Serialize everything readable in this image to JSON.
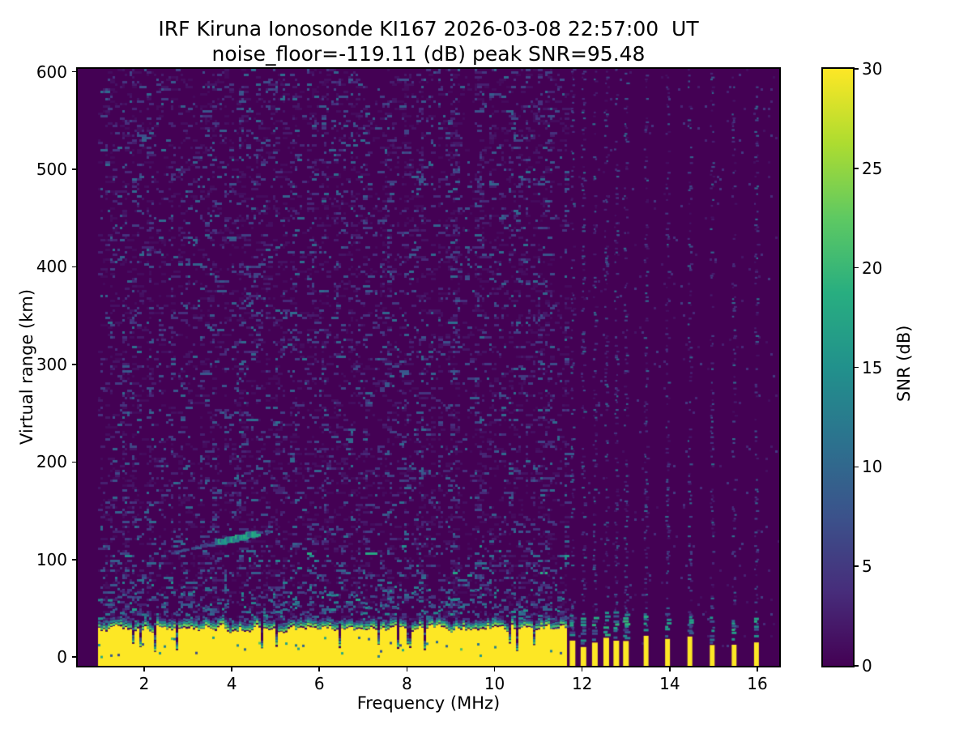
{
  "figure": {
    "title_line1": "IRF Kiruna Ionosonde KI167 2026-03-08 22:57:00  UT",
    "title_line2": "noise_floor=-119.11 (dB) peak SNR=95.48",
    "background": "#ffffff"
  },
  "chart_data": {
    "type": "heatmap",
    "title": "IRF Kiruna Ionosonde KI167 2026-03-08 22:57:00  UT\nnoise_floor=-119.11 (dB) peak SNR=95.48",
    "xlabel": "Frequency (MHz)",
    "ylabel": "Virtual range (km)",
    "colorbar_label": "SNR (dB)",
    "colormap": "viridis",
    "xlim": [
      0.483,
      16.5
    ],
    "ylim": [
      -9,
      603
    ],
    "clim": [
      0,
      30
    ],
    "xticks": [
      2,
      4,
      6,
      8,
      10,
      12,
      14,
      16
    ],
    "yticks": [
      0,
      100,
      200,
      300,
      400,
      500,
      600
    ],
    "colorbar_ticks": [
      0,
      5,
      10,
      15,
      20,
      25,
      30
    ],
    "noise_floor_db": -119.11,
    "peak_snr_db": 95.48,
    "grid": false,
    "viridis_stops": [
      "#440154",
      "#472d7b",
      "#3b528b",
      "#2c728e",
      "#21918c",
      "#28ae80",
      "#5ec962",
      "#addc30",
      "#fde725"
    ],
    "features": {
      "sweep_start_mhz": 0.95,
      "continuous_sweep_end_mhz": 11.65,
      "sparse_freqs_mhz": [
        11.78,
        12.03,
        12.29,
        12.55,
        12.78,
        13.0,
        13.46,
        13.95,
        14.46,
        14.97,
        15.47,
        15.98
      ],
      "ground_band": {
        "description": "saturated near-range band (SNR >= 30 dB, yellow) from sweep start to 11.65 MHz",
        "top_km_min": 23,
        "top_km_max": 36,
        "notch_probability": 0.055
      },
      "sparse_column_band": {
        "description": "isolated saturated columns at sparse sounding frequencies",
        "top_km_min": 10,
        "top_km_max": 22
      },
      "echo_trace": {
        "description": "sporadic-E / low ionospheric echo trace",
        "f_start_mhz": 2.68,
        "f_end_mhz": 4.85,
        "km_start": 107,
        "km_end": 129,
        "bright_segment_mhz": [
          3.65,
          4.6
        ],
        "snr_db_range": [
          8,
          20
        ],
        "points": [
          {
            "mhz": 2.7,
            "km": 107
          },
          {
            "mhz": 3.0,
            "km": 110
          },
          {
            "mhz": 3.3,
            "km": 113
          },
          {
            "mhz": 3.6,
            "km": 116
          },
          {
            "mhz": 3.9,
            "km": 119
          },
          {
            "mhz": 4.2,
            "km": 122
          },
          {
            "mhz": 4.5,
            "km": 125
          },
          {
            "mhz": 4.8,
            "km": 128
          }
        ]
      },
      "background_noise": "sparse horizontal speckle 1-12 dB below 11.65 MHz; near-flat background with vertical speckle stripes at sparse sounding frequencies above 11.65 MHz"
    }
  }
}
